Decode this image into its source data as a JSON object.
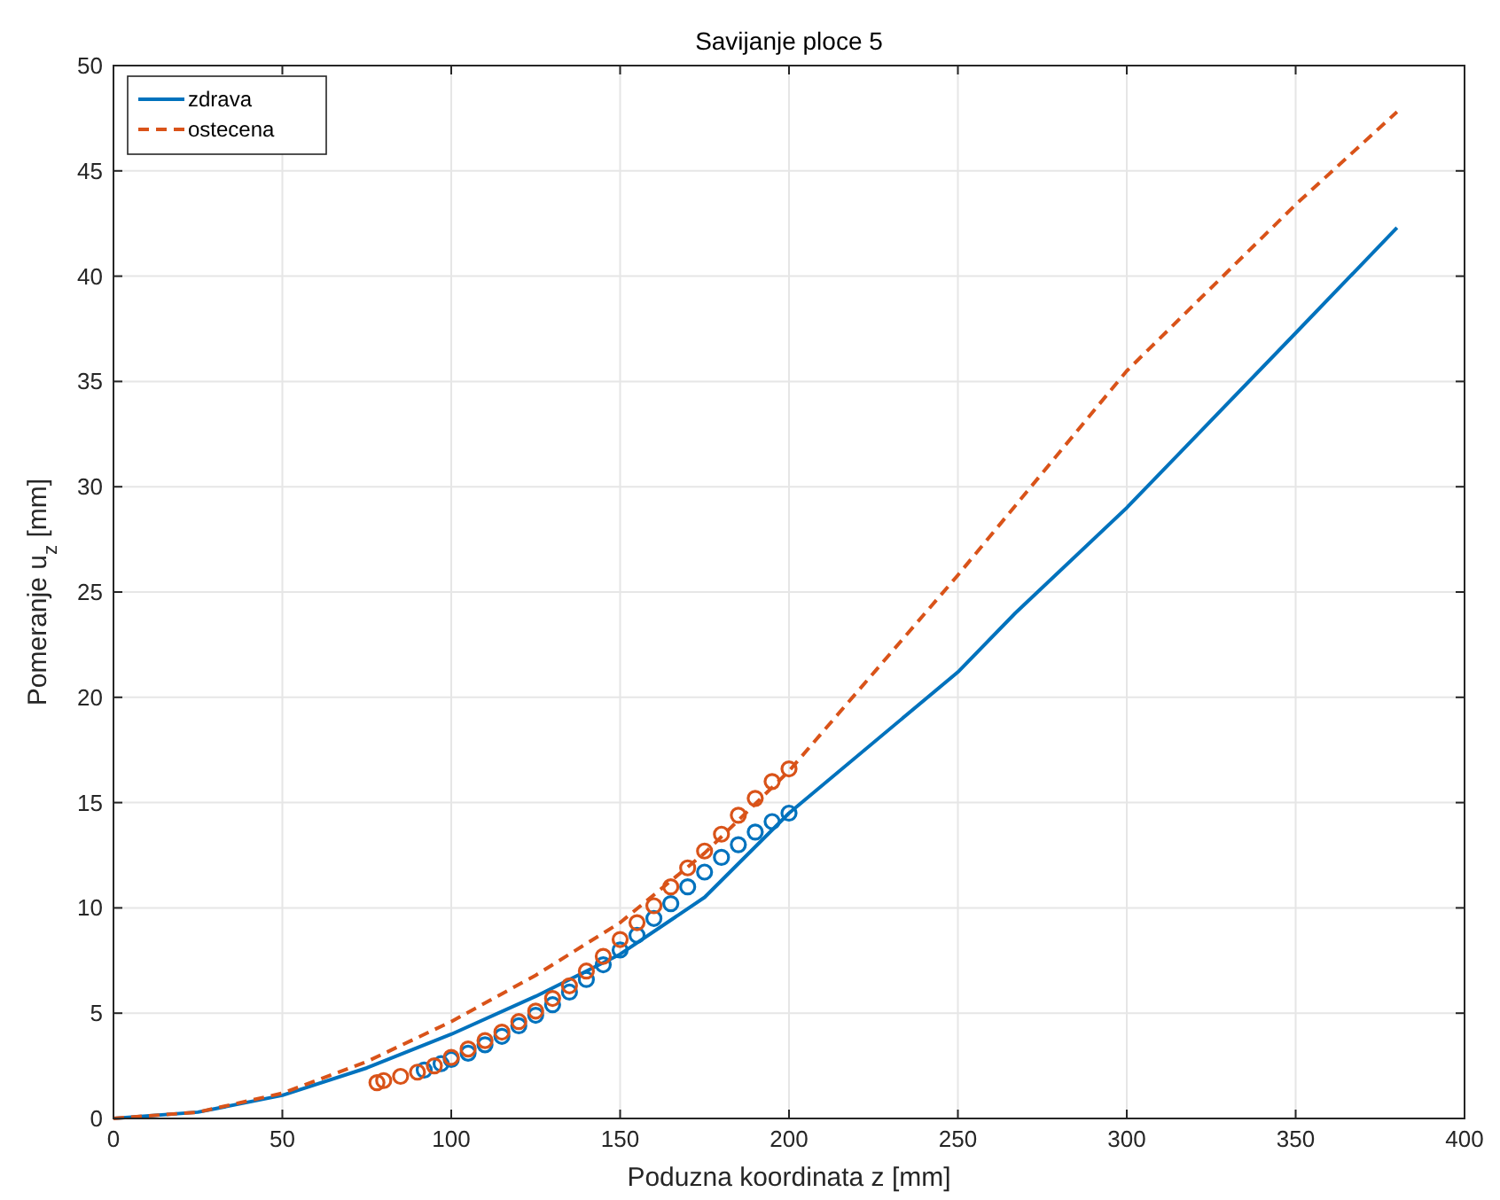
{
  "chart_data": {
    "type": "line",
    "title": "Savijanje ploce 5",
    "xlabel": "Poduzna koordinata z [mm]",
    "ylabel": "Pomeranje u$_{z}$ [mm]",
    "xlim": [
      0,
      400
    ],
    "ylim": [
      0,
      50
    ],
    "xticks": [
      0,
      50,
      100,
      150,
      200,
      250,
      300,
      350,
      400
    ],
    "yticks": [
      0,
      5,
      10,
      15,
      20,
      25,
      30,
      35,
      40,
      45,
      50
    ],
    "grid": true,
    "legend": "top left",
    "series": [
      {
        "name": "zdrava",
        "color": "#0072bd",
        "line_style": "solid",
        "x": [
          0,
          25,
          50,
          75,
          100,
          125,
          150,
          175,
          200,
          250,
          267,
          300,
          350,
          380
        ],
        "values": [
          0,
          0.3,
          1.1,
          2.4,
          4.0,
          5.8,
          7.8,
          10.5,
          14.5,
          21.2,
          24,
          29,
          37.3,
          42.3
        ]
      },
      {
        "name": "ostecena",
        "color": "#d95319",
        "line_style": "dashed",
        "x": [
          0,
          25,
          50,
          75,
          100,
          125,
          150,
          175,
          200,
          250,
          300,
          350,
          380
        ],
        "values": [
          0,
          0.3,
          1.2,
          2.7,
          4.6,
          6.8,
          9.3,
          12.6,
          16.5,
          25.8,
          35.5,
          43.4,
          47.8
        ]
      },
      {
        "type": "scatter",
        "color": "#0072bd",
        "marker": "circle",
        "x": [
          92,
          97,
          100,
          105,
          110,
          115,
          120,
          125,
          130,
          135,
          140,
          145,
          150,
          155,
          160,
          165,
          170,
          175,
          180,
          185,
          190,
          195,
          200
        ],
        "values": [
          2.3,
          2.6,
          2.8,
          3.1,
          3.5,
          3.9,
          4.4,
          4.9,
          5.4,
          6.0,
          6.6,
          7.3,
          8.0,
          8.7,
          9.5,
          10.2,
          11.0,
          11.7,
          12.4,
          13.0,
          13.6,
          14.1,
          14.5
        ]
      },
      {
        "type": "scatter",
        "color": "#d95319",
        "marker": "circle",
        "x": [
          78,
          80,
          85,
          90,
          95,
          100,
          105,
          110,
          115,
          120,
          125,
          130,
          135,
          140,
          145,
          150,
          155,
          160,
          165,
          170,
          175,
          180,
          185,
          190,
          195,
          200
        ],
        "values": [
          1.7,
          1.8,
          2.0,
          2.2,
          2.5,
          2.9,
          3.3,
          3.7,
          4.1,
          4.6,
          5.1,
          5.7,
          6.3,
          7.0,
          7.7,
          8.5,
          9.3,
          10.1,
          11.0,
          11.9,
          12.7,
          13.5,
          14.4,
          15.2,
          16.0,
          16.6
        ]
      }
    ]
  }
}
